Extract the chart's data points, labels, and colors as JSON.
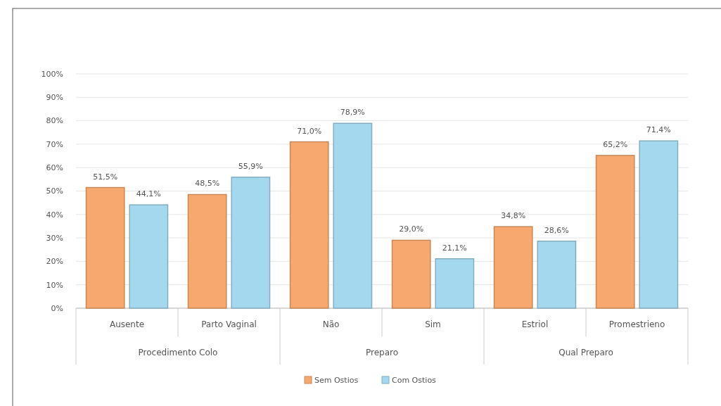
{
  "chart_data": {
    "type": "bar",
    "categories": [
      "Ausente",
      "Parto Vaginal",
      "Não",
      "Sim",
      "Estriol",
      "Promestrieno"
    ],
    "annotations": [
      "Procedimento Colo",
      "Preparo",
      "Qual Preparo"
    ],
    "series": [
      {
        "name": "Sem Ostios",
        "color": "#f7a86e",
        "values": [
          51.5,
          48.5,
          71.0,
          29.0,
          34.8,
          65.2
        ],
        "value_labels": [
          "51,5%",
          "48,5%",
          "71,0%",
          "29,0%",
          "34,8%",
          "65,2%"
        ]
      },
      {
        "name": "Com Ostios",
        "color": "#a3d8ee",
        "values": [
          44.1,
          55.9,
          78.9,
          21.1,
          28.6,
          71.4
        ],
        "value_labels": [
          "44,1%",
          "55,9%",
          "78,9%",
          "21,1%",
          "28,6%",
          "71,4%"
        ]
      }
    ],
    "ylim": [
      0,
      100
    ],
    "yticks": [
      {
        "value": 0,
        "label": "0%"
      },
      {
        "value": 10,
        "label": "10%"
      },
      {
        "value": 20,
        "label": "20%"
      },
      {
        "value": 30,
        "label": "30%"
      },
      {
        "value": 40,
        "label": "40%"
      },
      {
        "value": 50,
        "label": "50%"
      },
      {
        "value": 60,
        "label": "60%"
      },
      {
        "value": 70,
        "label": "70%"
      },
      {
        "value": 80,
        "label": "80%"
      },
      {
        "value": 90,
        "label": "90%"
      },
      {
        "value": 100,
        "label": "100%"
      }
    ],
    "grid": "y",
    "legend": "bottom"
  }
}
